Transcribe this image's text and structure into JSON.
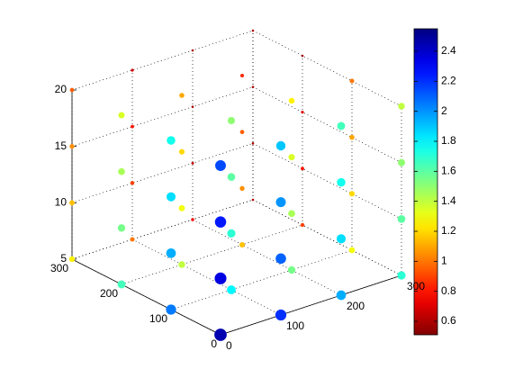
{
  "chart_data": {
    "type": "scatter3d",
    "xlim": [
      0,
      300
    ],
    "xticks": [
      0,
      100,
      200,
      300
    ],
    "ylim": [
      0,
      300
    ],
    "yticks": [
      0,
      100,
      200,
      300
    ],
    "zlim": [
      5,
      20
    ],
    "zticks": [
      5,
      10,
      15,
      20
    ],
    "grid": true,
    "colormap": "jet",
    "clim": [
      0.51,
      2.55
    ],
    "cticks": [
      0.6,
      0.8,
      1,
      1.2,
      1.4,
      1.6,
      1.8,
      2,
      2.2,
      2.4
    ],
    "x": [
      0,
      100,
      200,
      300,
      0,
      100,
      200,
      300,
      0,
      100,
      200,
      300,
      0,
      100,
      200,
      300,
      0,
      100,
      200,
      300,
      0,
      100,
      200,
      300,
      0,
      100,
      200,
      300,
      0,
      100,
      200,
      300,
      0,
      100,
      200,
      300,
      0,
      100,
      200,
      300,
      0,
      100,
      200,
      300,
      0,
      100,
      200,
      300,
      0,
      100,
      200,
      300,
      0,
      100,
      200,
      300,
      0,
      100,
      200,
      300,
      0,
      100,
      200,
      300
    ],
    "y": [
      0,
      0,
      0,
      0,
      100,
      100,
      100,
      100,
      200,
      200,
      200,
      200,
      300,
      300,
      300,
      300,
      0,
      0,
      0,
      0,
      100,
      100,
      100,
      100,
      200,
      200,
      200,
      200,
      300,
      300,
      300,
      300,
      0,
      0,
      0,
      0,
      100,
      100,
      100,
      100,
      200,
      200,
      200,
      200,
      300,
      300,
      300,
      300,
      0,
      0,
      0,
      0,
      100,
      100,
      100,
      100,
      200,
      200,
      200,
      200,
      300,
      300,
      300,
      300
    ],
    "z": [
      5,
      5,
      5,
      5,
      5,
      5,
      5,
      5,
      5,
      5,
      5,
      5,
      5,
      5,
      5,
      5,
      10,
      10,
      10,
      10,
      10,
      10,
      10,
      10,
      10,
      10,
      10,
      10,
      10,
      10,
      10,
      10,
      15,
      15,
      15,
      15,
      15,
      15,
      15,
      15,
      15,
      15,
      15,
      15,
      15,
      15,
      15,
      15,
      20,
      20,
      20,
      20,
      20,
      20,
      20,
      20,
      20,
      20,
      20,
      20,
      20,
      20,
      20,
      20
    ],
    "values": [
      2.45,
      2.2,
      1.95,
      1.7,
      2.05,
      1.8,
      1.55,
      1.3,
      1.65,
      1.4,
      1.15,
      0.9,
      1.25,
      1.0,
      0.75,
      0.6,
      2.35,
      2.1,
      1.85,
      1.6,
      1.95,
      1.7,
      1.45,
      1.2,
      1.55,
      1.3,
      1.05,
      0.8,
      1.15,
      0.9,
      0.65,
      0.6,
      2.25,
      2.0,
      1.75,
      1.5,
      1.85,
      1.6,
      1.35,
      1.1,
      1.45,
      1.2,
      0.95,
      0.7,
      1.05,
      0.8,
      0.6,
      0.6,
      2.15,
      1.9,
      1.65,
      1.4,
      1.75,
      1.5,
      1.25,
      1.0,
      1.35,
      1.1,
      0.85,
      0.6,
      0.95,
      0.7,
      0.6,
      0.6
    ]
  }
}
